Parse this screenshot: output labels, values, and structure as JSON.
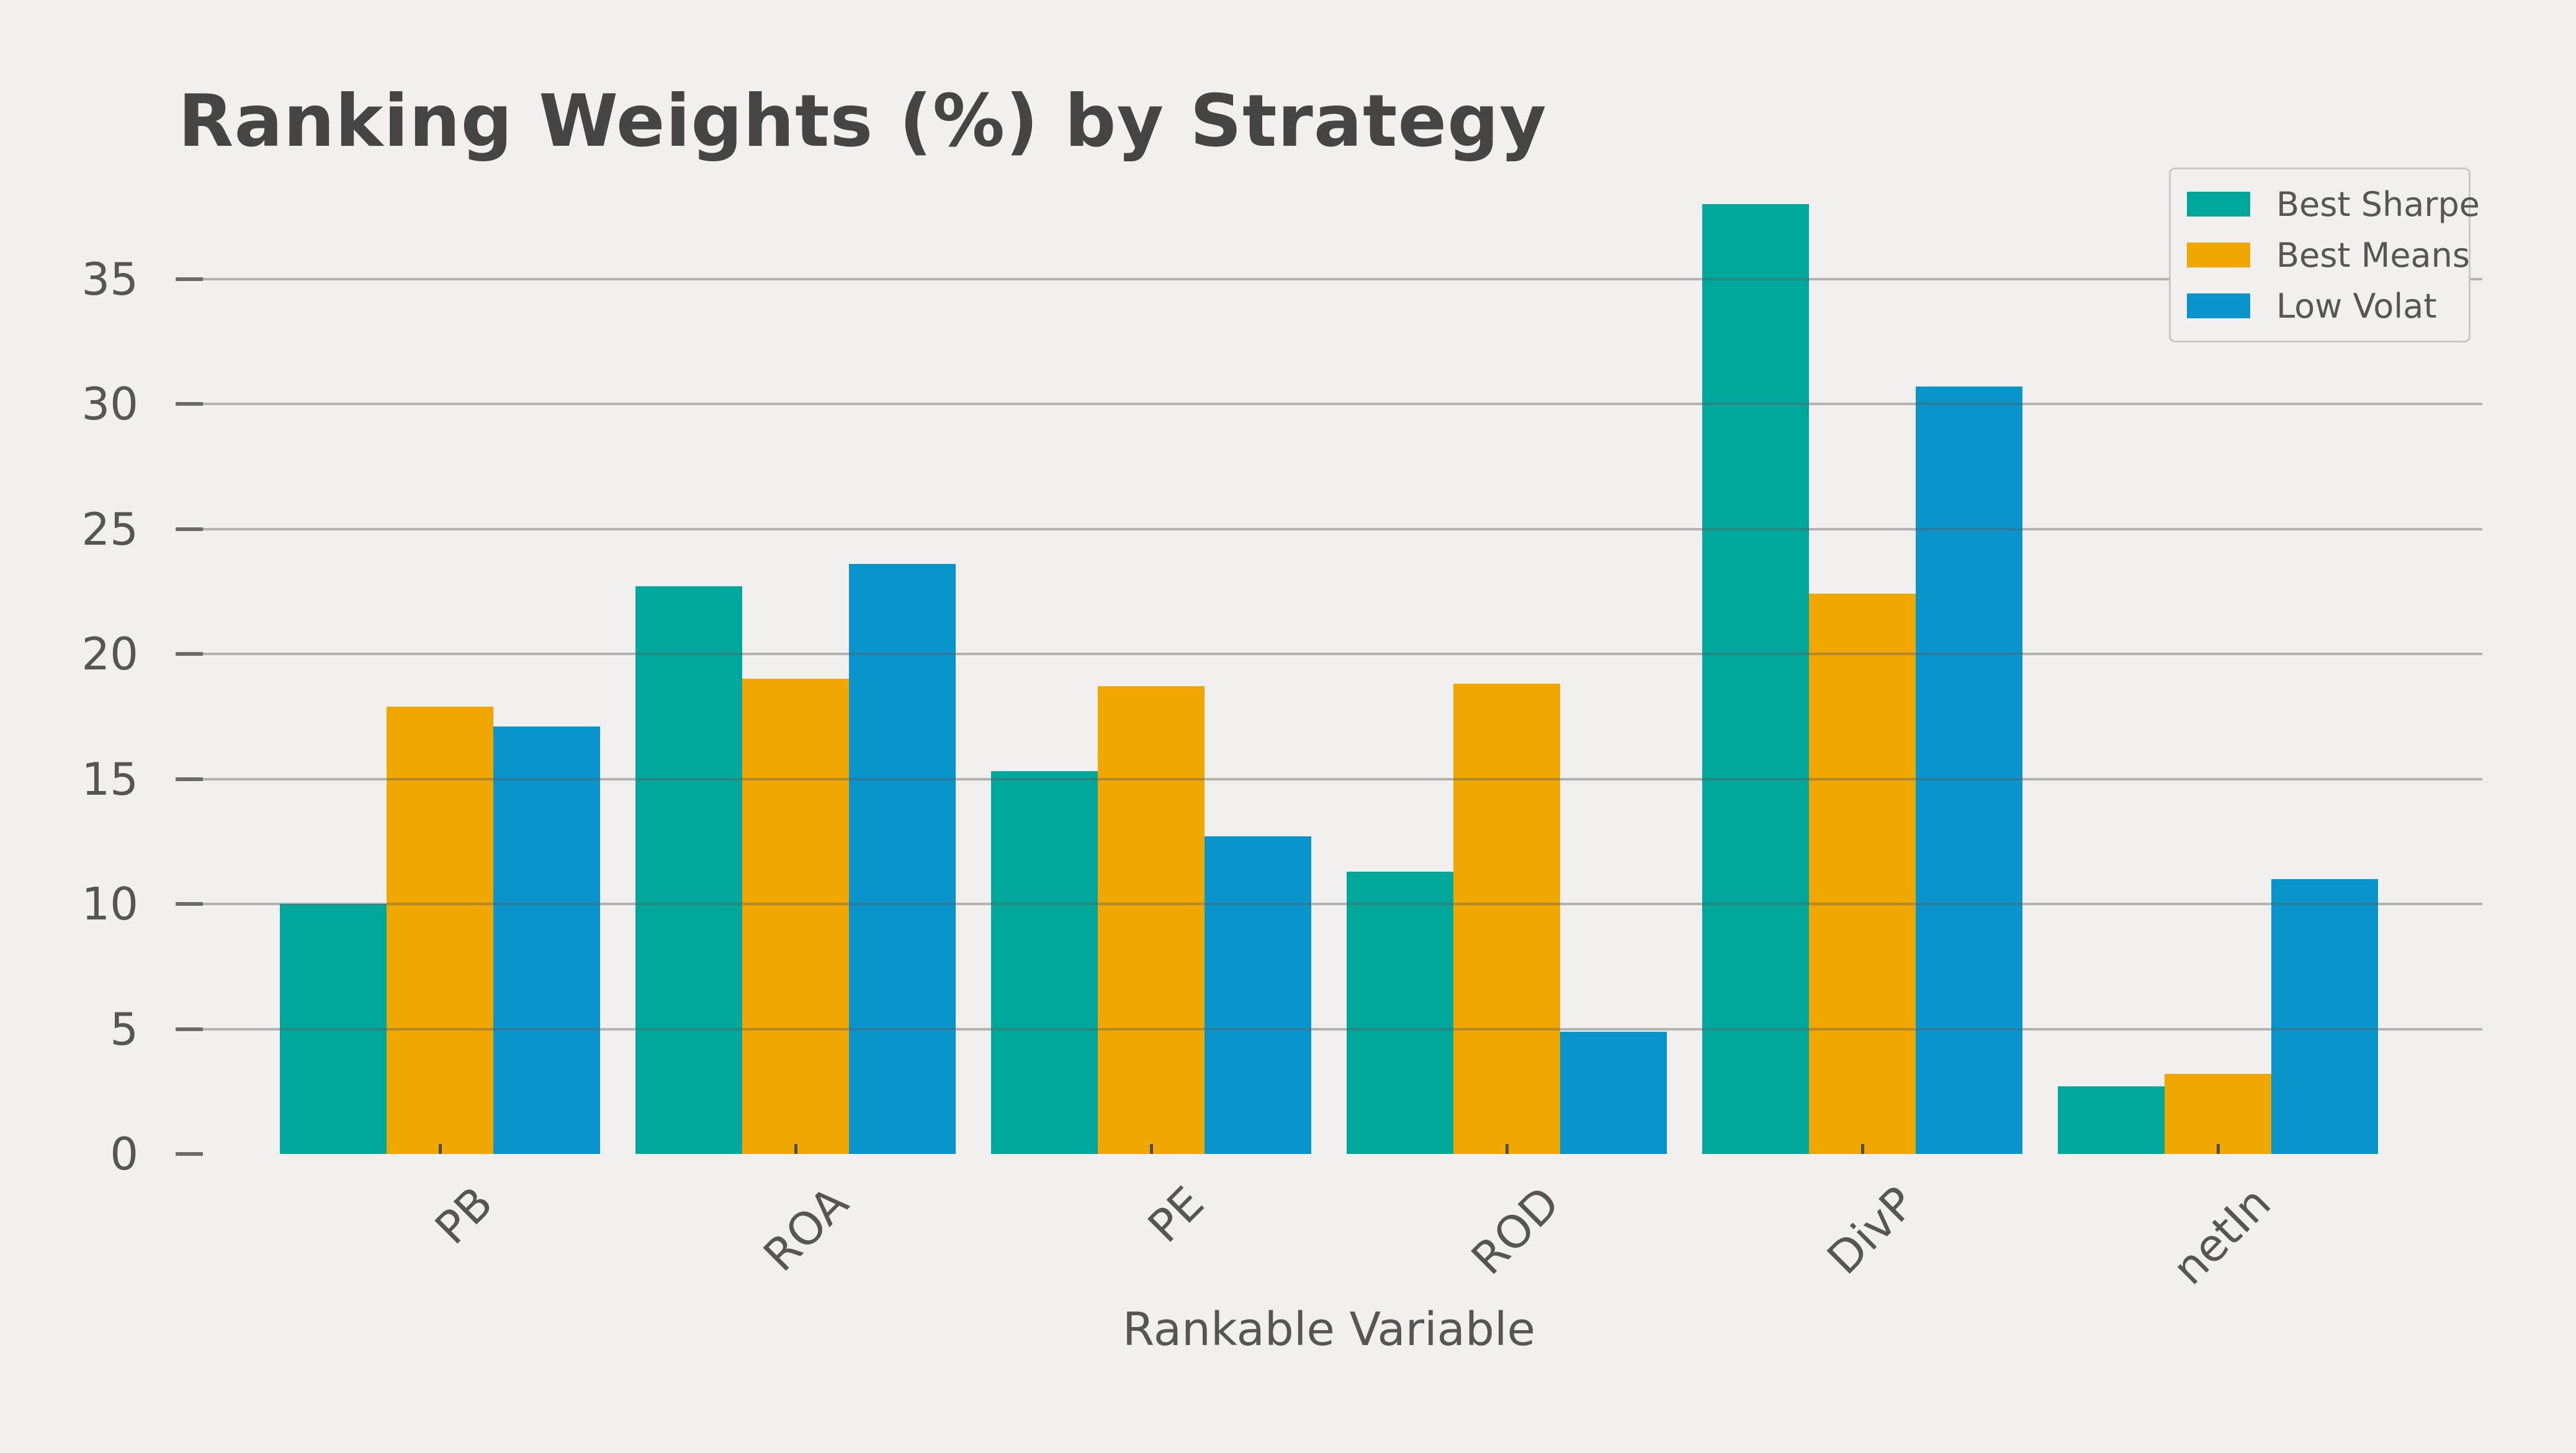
{
  "figure": {
    "title": "Ranking Weights (%) by Strategy",
    "background_color": "#f1f0ee",
    "title_color": "#454545",
    "text_color": "#565656",
    "gridline_color": "rgba(92,92,92,0.42)",
    "tick_color": "#6b6b6b",
    "legend_border_color": "#c8c8c8"
  },
  "chart_data": {
    "type": "bar",
    "title": "Ranking Weights (%) by Strategy",
    "xlabel": "Rankable Variable",
    "ylabel": "",
    "categories": [
      "PB",
      "ROA",
      "PE",
      "ROD",
      "DivP",
      "netIn"
    ],
    "series": [
      {
        "name": "Best Sharpe",
        "color": "#00a79b",
        "values": [
          10.0,
          22.7,
          15.3,
          11.3,
          38.0,
          2.7
        ]
      },
      {
        "name": "Best Means",
        "color": "#f0a702",
        "values": [
          17.9,
          19.0,
          18.7,
          18.8,
          22.4,
          3.2
        ]
      },
      {
        "name": "Low Volat",
        "color": "#0994cb",
        "values": [
          17.1,
          23.6,
          12.7,
          4.9,
          30.7,
          11.0
        ]
      }
    ],
    "yticks": [
      0,
      5,
      10,
      15,
      20,
      25,
      30,
      35
    ],
    "ylim": [
      0,
      38.8
    ],
    "grid": "horizontal",
    "grid_above_bars": true,
    "legend_position": "upper right",
    "x_tick_label_rotation_deg": 45,
    "values_unit": "percent"
  }
}
